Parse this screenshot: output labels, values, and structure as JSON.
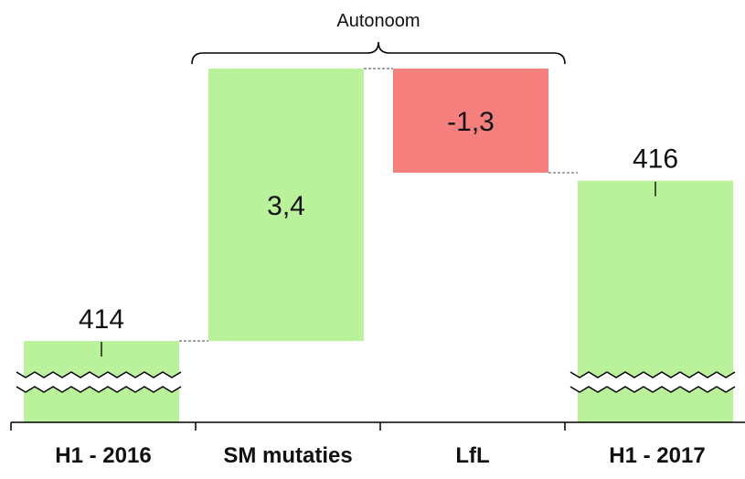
{
  "chart_data": {
    "type": "bar",
    "subtype": "waterfall",
    "categories": [
      "H1 - 2016",
      "SM mutaties",
      "LfL",
      "H1 - 2017"
    ],
    "series": [
      {
        "values": [
          414,
          3.4,
          -1.3,
          416
        ],
        "labels": [
          "414",
          "3,4",
          "-1,3",
          "416"
        ],
        "kinds": [
          "total",
          "delta",
          "delta",
          "total"
        ]
      }
    ],
    "axis_break": true,
    "grid": false,
    "legend": "none",
    "annotation": {
      "text": "Autonoom",
      "spans": [
        "SM mutaties",
        "LfL"
      ]
    },
    "colors": {
      "increase": "#b9f29a",
      "decrease": "#f47f7c",
      "total": "#b9f29a",
      "connector": "#666666",
      "axis": "#000000"
    }
  }
}
